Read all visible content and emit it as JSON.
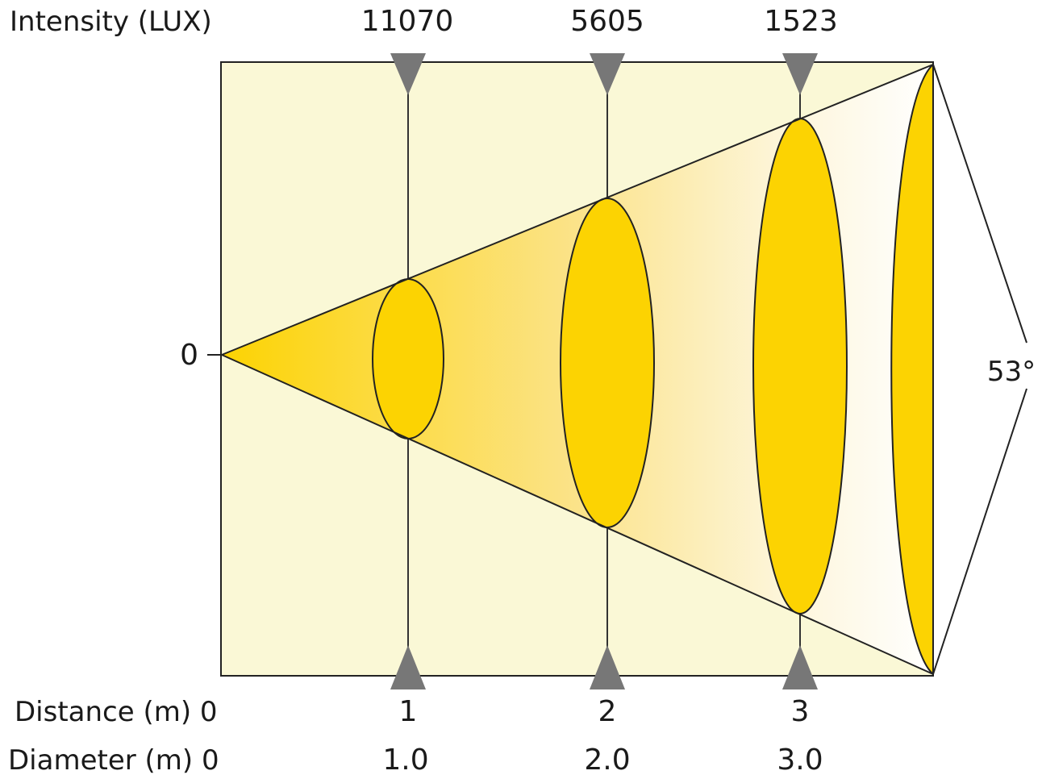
{
  "intensity": {
    "label": "Intensity (LUX)",
    "values": [
      "11070",
      "5605",
      "1523"
    ]
  },
  "distance": {
    "label": "Distance (m) 0",
    "values": [
      "1",
      "2",
      "3"
    ]
  },
  "diameter": {
    "label": "Diameter (m) 0",
    "values": [
      "1.0",
      "2.0",
      "3.0"
    ]
  },
  "origin_label": "0",
  "beam_angle": "53°",
  "colors": {
    "background": "#faf8d6",
    "beam": "#fcd302",
    "spot_fill": "#fcd302",
    "marker": "#777777",
    "line": "#222222"
  }
}
